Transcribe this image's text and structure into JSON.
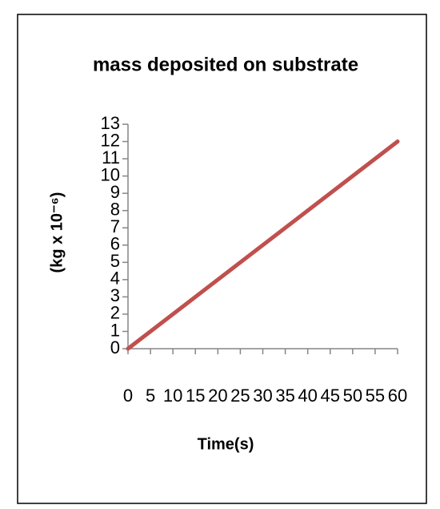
{
  "chart_data": {
    "type": "line",
    "title": "mass deposited on substrate",
    "x_label": "Time(s)",
    "y_label": "(kg x 10⁻⁶)",
    "x": [
      0,
      60
    ],
    "series": [
      {
        "color": "#c0504d",
        "values": [
          0,
          12
        ]
      }
    ],
    "xlim": [
      0,
      60
    ],
    "xticks": [
      0,
      5,
      10,
      15,
      20,
      25,
      30,
      35,
      40,
      45,
      50,
      55,
      60
    ],
    "ylim": [
      0,
      13
    ],
    "yticks": [
      0,
      1,
      2,
      3,
      4,
      5,
      6,
      7,
      8,
      9,
      10,
      11,
      12,
      13
    ]
  }
}
